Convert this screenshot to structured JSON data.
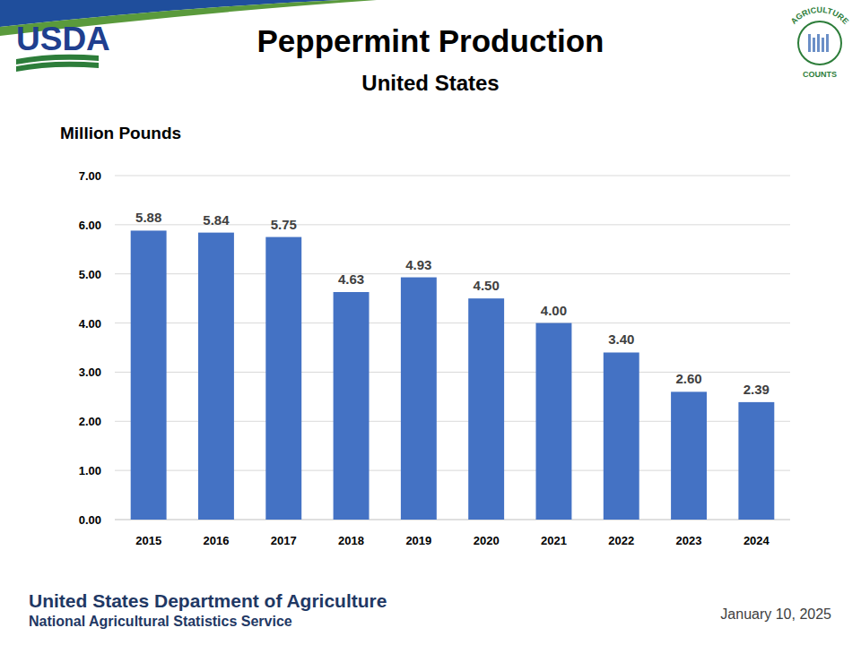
{
  "chart_data": {
    "type": "bar",
    "title": "Peppermint Production",
    "subtitle": "United States",
    "y_label": "Million Pounds",
    "categories": [
      "2015",
      "2016",
      "2017",
      "2018",
      "2019",
      "2020",
      "2021",
      "2022",
      "2023",
      "2024"
    ],
    "values": [
      5.88,
      5.84,
      5.75,
      4.63,
      4.93,
      4.5,
      4.0,
      3.4,
      2.6,
      2.39
    ],
    "value_labels": [
      "5.88",
      "5.84",
      "5.75",
      "4.63",
      "4.93",
      "4.50",
      "4.00",
      "3.40",
      "2.60",
      "2.39"
    ],
    "color": "#4472c4",
    "ylim": [
      0,
      7
    ],
    "yticks": [
      {
        "value": 0,
        "label": "0.00"
      },
      {
        "value": 1,
        "label": "1.00"
      },
      {
        "value": 2,
        "label": "2.00"
      },
      {
        "value": 3,
        "label": "3.00"
      },
      {
        "value": 4,
        "label": "4.00"
      },
      {
        "value": 5,
        "label": "5.00"
      },
      {
        "value": 6,
        "label": "6.00"
      },
      {
        "value": 7,
        "label": "7.00"
      }
    ],
    "grid": true,
    "data_labels": true
  },
  "logos": {
    "left": "USDA",
    "right": [
      "AGRICULTURE",
      "COUNTS"
    ]
  },
  "footer": {
    "organization": "United States Department of Agriculture",
    "agency": "National Agricultural Statistics Service",
    "date": "January 10, 2025"
  }
}
